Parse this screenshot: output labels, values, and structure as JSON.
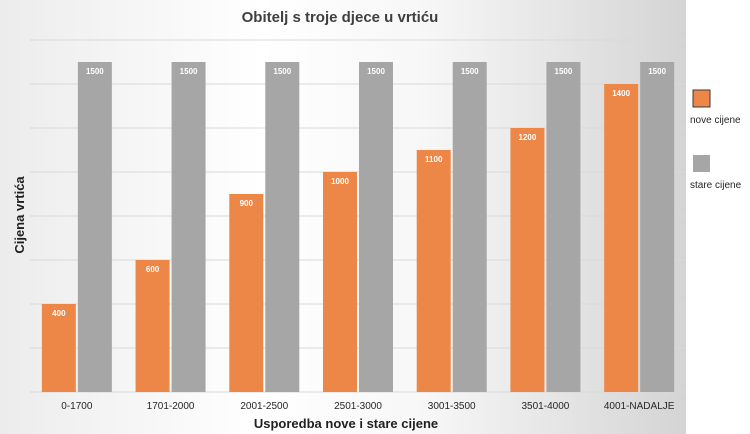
{
  "chart_data": {
    "type": "bar",
    "title": "Obitelj s troje djece u vrtiću",
    "xlabel": "Usporedba  nove i stare cijene",
    "ylabel": "Cijena vrtića",
    "categories": [
      "0-1700",
      "1701-2000",
      "2001-2500",
      "2501-3000",
      "3001-3500",
      "3501-4000",
      "4001-NADALJE"
    ],
    "series": [
      {
        "name": "nove cijene",
        "color": "#ed8748",
        "values": [
          400,
          600,
          900,
          1000,
          1100,
          1200,
          1400
        ]
      },
      {
        "name": "stare cijene",
        "color": "#a6a6a6",
        "values": [
          1500,
          1500,
          1500,
          1500,
          1500,
          1500,
          1500
        ]
      }
    ],
    "ylim": [
      0,
      1600
    ],
    "gridline_step": 200,
    "grid": true,
    "legend_position": "right",
    "data_labels": true
  }
}
